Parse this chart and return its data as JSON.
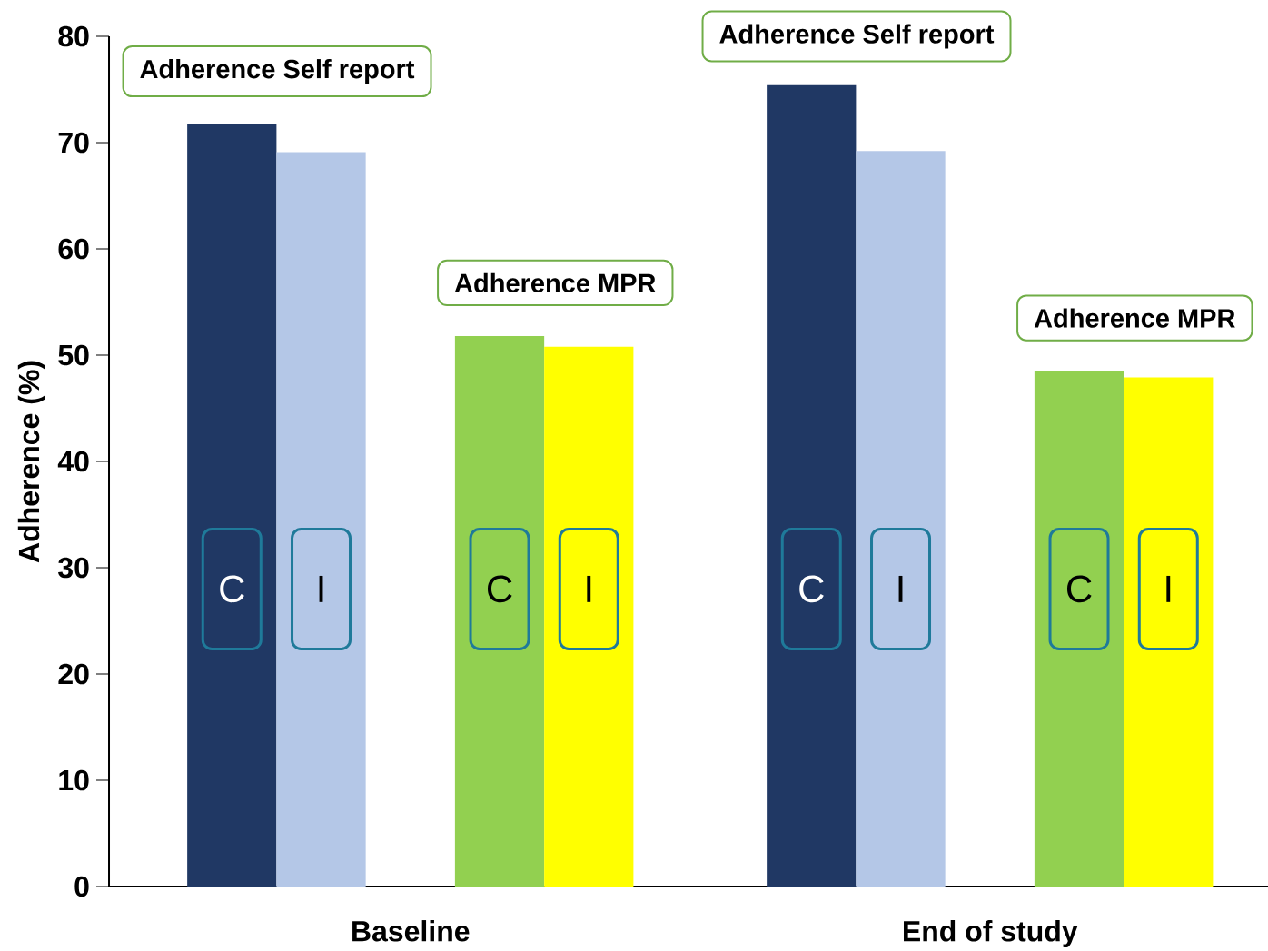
{
  "chart_data": {
    "type": "bar",
    "ylabel": "Adherence (%)",
    "categories": [
      "Baseline",
      "End of study"
    ],
    "series": [
      {
        "name": "C",
        "color": "#203864",
        "values": [
          71.7,
          75.4
        ]
      },
      {
        "name": "I",
        "color": "#b4c7e7",
        "values": [
          69.1,
          69.2
        ]
      },
      {
        "name": "C",
        "color": "#92d050",
        "values": [
          51.8,
          48.5
        ]
      },
      {
        "name": "I",
        "color": "#ffff00",
        "values": [
          50.8,
          47.9
        ]
      }
    ],
    "ylim": [
      0,
      80
    ],
    "yticks": [
      0,
      10,
      20,
      30,
      40,
      50,
      60,
      70,
      80
    ],
    "grid": false,
    "annotations": [
      "Adherence Self report",
      "Adherence MPR",
      "Adherence Self report",
      "Adherence MPR"
    ]
  }
}
